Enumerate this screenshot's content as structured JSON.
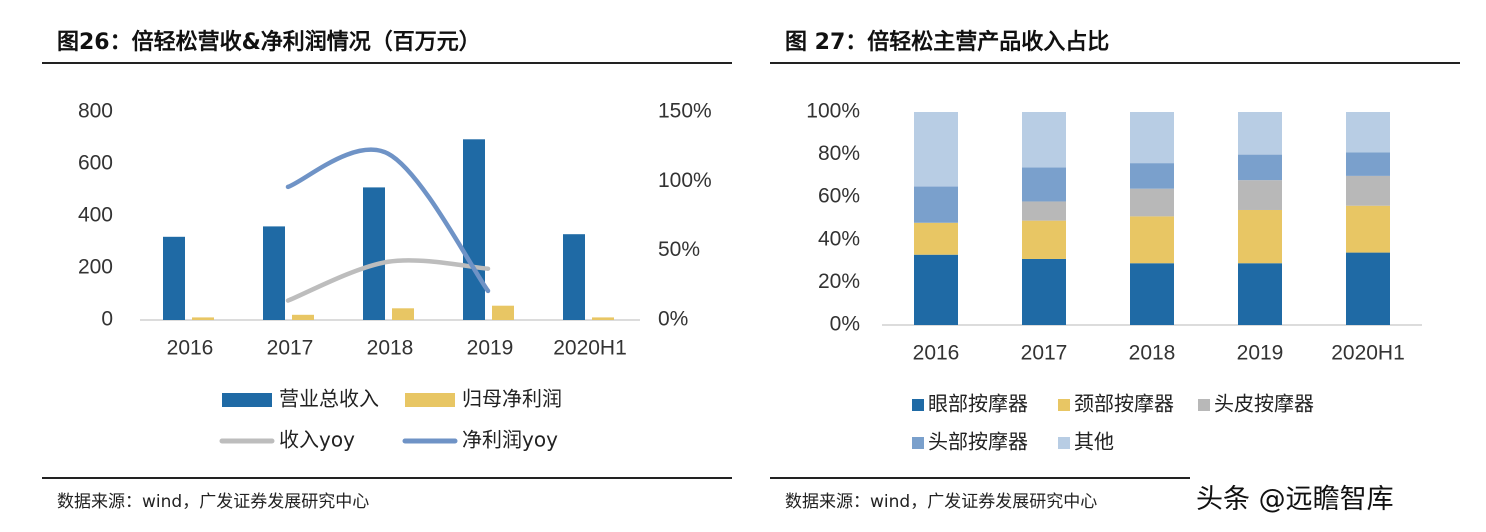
{
  "left_panel": {
    "title": "图26：倍轻松营收&净利润情况（百万元）",
    "source": "数据来源：wind，广发证券发展研究中心"
  },
  "right_panel": {
    "title": "图 27：倍轻松主营产品收入占比",
    "source": "数据来源：wind，广发证券发展研究中心"
  },
  "watermark": "头条 @远瞻智库",
  "colors": {
    "dark_blue": "#1f6aa5",
    "gold": "#e8c664",
    "gray": "#b8b8b8",
    "mid_blue": "#7aa0cc",
    "light_blue": "#b8cde4",
    "yoy_gray": "#bdbdbd",
    "yoy_blue": "#6f93c6"
  },
  "chart_data": [
    {
      "type": "bar",
      "title": "图26：倍轻松营收&净利润情况（百万元）",
      "categories": [
        "2016",
        "2017",
        "2018",
        "2019",
        "2020H1"
      ],
      "ylim": [
        0,
        800
      ],
      "y_ticks": [
        "0",
        "200",
        "400",
        "600",
        "800"
      ],
      "y2lim": [
        0,
        1.5
      ],
      "y2_ticks": [
        "0%",
        "50%",
        "100%",
        "150%"
      ],
      "series": [
        {
          "name": "营业总收入",
          "kind": "bar",
          "axis": "left",
          "values": [
            320,
            360,
            510,
            695,
            330
          ]
        },
        {
          "name": "归母净利润",
          "kind": "bar",
          "axis": "left",
          "values": [
            10,
            20,
            45,
            55,
            10
          ]
        },
        {
          "name": "收入yoy",
          "kind": "line",
          "axis": "right",
          "values": [
            null,
            0.14,
            0.42,
            0.37,
            null
          ]
        },
        {
          "name": "净利润yoy",
          "kind": "line",
          "axis": "right",
          "values": [
            null,
            0.96,
            1.2,
            0.21,
            null
          ]
        }
      ],
      "legend": [
        "营业总收入",
        "归母净利润",
        "收入yoy",
        "净利润yoy"
      ]
    },
    {
      "type": "bar",
      "stacked": true,
      "title": "图 27：倍轻松主营产品收入占比",
      "categories": [
        "2016",
        "2017",
        "2018",
        "2019",
        "2020H1"
      ],
      "ylim": [
        0,
        1
      ],
      "y_ticks": [
        "0%",
        "20%",
        "40%",
        "60%",
        "80%",
        "100%"
      ],
      "series": [
        {
          "name": "眼部按摩器",
          "values": [
            0.33,
            0.31,
            0.29,
            0.29,
            0.34
          ]
        },
        {
          "name": "颈部按摩器",
          "values": [
            0.15,
            0.18,
            0.22,
            0.25,
            0.22
          ]
        },
        {
          "name": "头皮按摩器",
          "values": [
            0.0,
            0.09,
            0.13,
            0.14,
            0.14
          ]
        },
        {
          "name": "头部按摩器",
          "values": [
            0.17,
            0.16,
            0.12,
            0.12,
            0.11
          ]
        },
        {
          "name": "其他",
          "values": [
            0.35,
            0.26,
            0.24,
            0.2,
            0.19
          ]
        }
      ],
      "legend": [
        "眼部按摩器",
        "颈部按摩器",
        "头皮按摩器",
        "头部按摩器",
        "其他"
      ]
    }
  ]
}
